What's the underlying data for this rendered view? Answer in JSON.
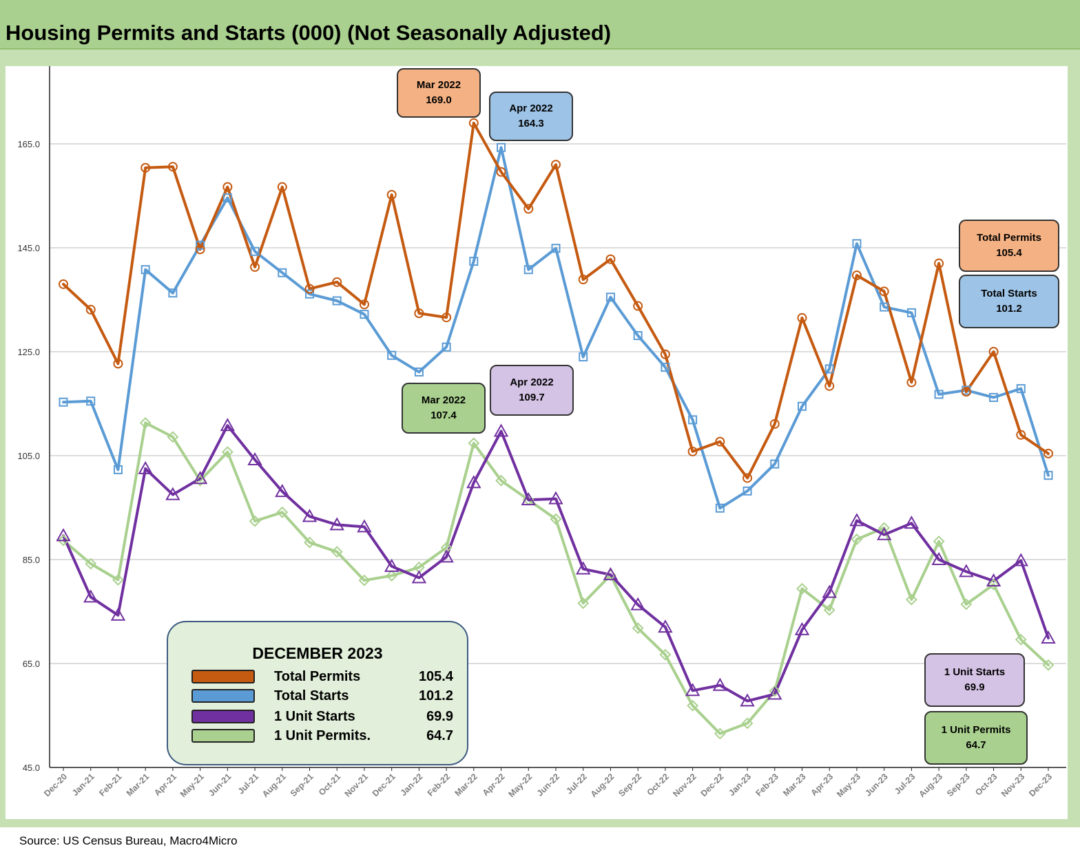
{
  "chart_data": {
    "type": "line",
    "title": "Housing Permits and Starts (000) (Not Seasonally Adjusted)",
    "categories": [
      "Dec-20",
      "Jan-21",
      "Feb-21",
      "Mar-21",
      "Apr-21",
      "May-21",
      "Jun-21",
      "Jul-21",
      "Aug-21",
      "Sep-21",
      "Oct-21",
      "Nov-21",
      "Dec-21",
      "Jan-22",
      "Feb-22",
      "Mar-22",
      "Apr-22",
      "May-22",
      "Jun-22",
      "Jul-22",
      "Aug-22",
      "Sep-22",
      "Oct-22",
      "Nov-22",
      "Dec-22",
      "Jan-23",
      "Feb-23",
      "Mar-23",
      "Apr-23",
      "May-23",
      "Jun-23",
      "Jul-23",
      "Aug-23",
      "Sep-23",
      "Oct-23",
      "Nov-23",
      "Dec-23"
    ],
    "yticks": [
      "45.0",
      "65.0",
      "85.0",
      "105.0",
      "125.0",
      "145.0",
      "165.0"
    ],
    "ylim": [
      45,
      180
    ],
    "series": [
      {
        "name": "Total Permits",
        "color": "#c55a11",
        "marker": "circle",
        "values": [
          138.0,
          133.1,
          122.7,
          160.4,
          160.6,
          144.7,
          156.7,
          141.3,
          156.7,
          137.1,
          138.4,
          134.1,
          155.2,
          132.4,
          131.6,
          169.0,
          159.6,
          152.5,
          161.0,
          138.9,
          142.8,
          133.8,
          124.5,
          105.8,
          107.7,
          100.7,
          111.1,
          131.5,
          118.4,
          139.7,
          136.6,
          119.1,
          142.0,
          117.3,
          125.0,
          109.0,
          105.4
        ]
      },
      {
        "name": "Total Starts",
        "color": "#5b9bd5",
        "marker": "square",
        "values": [
          115.3,
          115.5,
          102.3,
          140.8,
          136.3,
          145.5,
          154.6,
          144.3,
          140.2,
          136.1,
          134.8,
          132.2,
          124.3,
          121.1,
          125.9,
          142.4,
          164.3,
          140.8,
          144.9,
          124.0,
          135.5,
          128.1,
          122.0,
          111.9,
          94.9,
          98.2,
          103.4,
          114.5,
          121.7,
          145.8,
          133.6,
          132.5,
          116.8,
          117.6,
          116.2,
          117.9,
          101.2
        ]
      },
      {
        "name": "1 Unit Starts",
        "color": "#7030a0",
        "marker": "triangle",
        "values": [
          89.6,
          77.8,
          74.3,
          102.5,
          97.5,
          100.6,
          110.8,
          104.2,
          98.1,
          93.3,
          91.7,
          91.3,
          83.7,
          81.5,
          85.5,
          99.8,
          109.7,
          96.5,
          96.7,
          83.2,
          82.1,
          76.3,
          72.0,
          59.8,
          60.8,
          57.8,
          59.1,
          71.5,
          78.7,
          92.5,
          89.8,
          92.0,
          85.0,
          82.7,
          80.9,
          84.8,
          69.9
        ]
      },
      {
        "name": "1 Unit Permits.",
        "color": "#a9d08e",
        "marker": "diamond",
        "values": [
          88.7,
          84.2,
          81.1,
          111.3,
          108.6,
          100.2,
          105.7,
          92.4,
          94.1,
          88.3,
          86.5,
          81.0,
          81.9,
          83.5,
          87.3,
          107.4,
          100.2,
          96.5,
          92.8,
          76.6,
          82.0,
          71.8,
          66.7,
          56.9,
          51.5,
          53.5,
          59.7,
          79.4,
          75.3,
          88.9,
          91.1,
          77.3,
          88.5,
          76.4,
          80.2,
          69.6,
          64.7
        ]
      }
    ],
    "legend": {
      "title": "DECEMBER 2023",
      "entries": [
        {
          "label": "Total Permits",
          "value": "105.4",
          "color": "#c55a11"
        },
        {
          "label": "Total Starts",
          "value": "101.2",
          "color": "#5b9bd5"
        },
        {
          "label": "1 Unit Starts",
          "value": "69.9",
          "color": "#7030a0"
        },
        {
          "label": "1 Unit Permits.",
          "value": "64.7",
          "color": "#a9d08e"
        }
      ]
    },
    "annotations": {
      "mar_permits": {
        "line1": "Mar 2022",
        "line2": "169.0",
        "fill": "#f4b183"
      },
      "apr_starts": {
        "line1": "Apr 2022",
        "line2": "164.3",
        "fill": "#9dc3e6"
      },
      "mar_1u_permits": {
        "line1": "Mar 2022",
        "line2": "107.4",
        "fill": "#a9d08e"
      },
      "apr_1u_starts": {
        "line1": "Apr 2022",
        "line2": "109.7",
        "fill": "#d5c3e6"
      },
      "end_total_permits": {
        "line1": "Total Permits",
        "line2": "105.4",
        "fill": "#f4b183"
      },
      "end_total_starts": {
        "line1": "Total Starts",
        "line2": "101.2",
        "fill": "#9dc3e6"
      },
      "end_1u_starts": {
        "line1": "1 Unit Starts",
        "line2": "69.9",
        "fill": "#d5c3e6"
      },
      "end_1u_permits": {
        "line1": "1 Unit Permits",
        "line2": "64.7",
        "fill": "#a9d08e"
      }
    },
    "source": "Source: US Census Bureau, Macro4Micro",
    "grid": true
  }
}
